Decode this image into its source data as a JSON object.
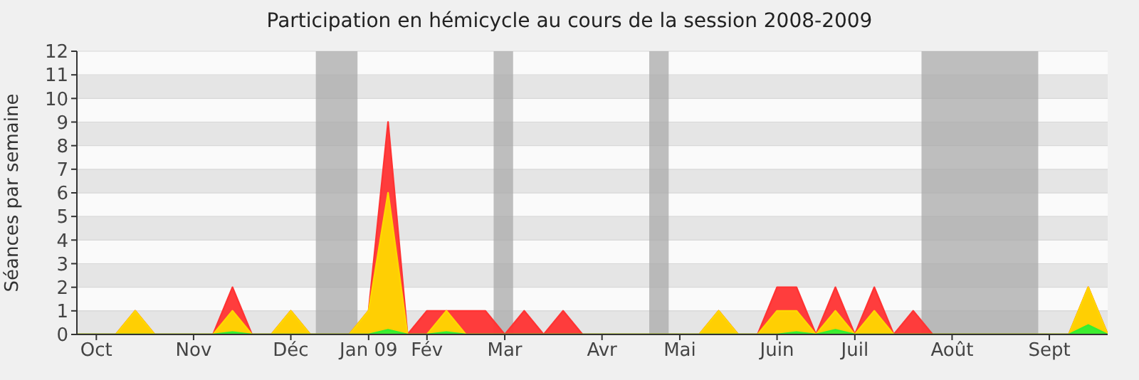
{
  "chart_data": {
    "type": "area",
    "title": "Participation en hémicycle au cours de la session 2008-2009",
    "ylabel": "Séances par semaine",
    "x": [
      "2008-09-29",
      "2008-10-06",
      "2008-10-13",
      "2008-10-20",
      "2008-10-27",
      "2008-11-03",
      "2008-11-10",
      "2008-11-17",
      "2008-11-24",
      "2008-12-01",
      "2008-12-08",
      "2008-12-15",
      "2008-12-22",
      "2008-12-29",
      "2009-01-05",
      "2009-01-12",
      "2009-01-19",
      "2009-01-26",
      "2009-02-02",
      "2009-02-09",
      "2009-02-16",
      "2009-02-23",
      "2009-03-02",
      "2009-03-09",
      "2009-03-16",
      "2009-03-23",
      "2009-03-30",
      "2009-04-06",
      "2009-04-13",
      "2009-04-20",
      "2009-04-27",
      "2009-05-04",
      "2009-05-11",
      "2009-05-18",
      "2009-05-25",
      "2009-06-01",
      "2009-06-08",
      "2009-06-15",
      "2009-06-22",
      "2009-06-29",
      "2009-07-06",
      "2009-07-13",
      "2009-07-20",
      "2009-07-27",
      "2009-08-03",
      "2009-08-10",
      "2009-08-17",
      "2009-08-24",
      "2009-08-31",
      "2009-09-07",
      "2009-09-14",
      "2009-09-21",
      "2009-09-28",
      "2009-10-05"
    ],
    "series": [
      {
        "color": "#ff3333",
        "values": [
          0,
          0,
          0,
          1,
          0,
          0,
          0,
          0,
          2,
          0,
          0,
          1,
          0,
          0,
          0,
          1,
          9,
          0,
          1,
          1,
          1,
          1,
          0,
          1,
          0,
          1,
          0,
          0,
          0,
          0,
          0,
          0,
          0,
          1,
          0,
          0,
          2,
          2,
          0,
          2,
          0,
          2,
          0,
          1,
          0,
          0,
          0,
          0,
          0,
          0,
          0,
          0,
          2,
          0
        ]
      },
      {
        "color": "#ffd700",
        "values": [
          0,
          0,
          0,
          1,
          0,
          0,
          0,
          0,
          1,
          0,
          0,
          1,
          0,
          0,
          0,
          1,
          6,
          0,
          0,
          1,
          0,
          0,
          0,
          0,
          0,
          0,
          0,
          0,
          0,
          0,
          0,
          0,
          0,
          1,
          0,
          0,
          1,
          1,
          0,
          1,
          0,
          1,
          0,
          0,
          0,
          0,
          0,
          0,
          0,
          0,
          0,
          0,
          2,
          0
        ]
      },
      {
        "color": "#33ee33",
        "values": [
          0,
          0,
          0,
          0,
          0,
          0,
          0,
          0,
          0.1,
          0,
          0,
          0,
          0,
          0,
          0,
          0,
          0.2,
          0,
          0,
          0.1,
          0,
          0,
          0,
          0,
          0,
          0,
          0,
          0,
          0,
          0,
          0,
          0,
          0,
          0,
          0,
          0,
          0,
          0.1,
          0,
          0.2,
          0,
          0,
          0,
          0,
          0,
          0,
          0,
          0,
          0,
          0,
          0,
          0,
          0.4,
          0
        ]
      }
    ],
    "xlim": [
      "2008-09-29",
      "2009-10-05"
    ],
    "xticks": [
      {
        "value": "2008-10-06",
        "label": "Oct"
      },
      {
        "value": "2008-11-10",
        "label": "Nov"
      },
      {
        "value": "2008-12-15",
        "label": "Déc"
      },
      {
        "value": "2009-01-12",
        "label": "Jan 09"
      },
      {
        "value": "2009-02-02",
        "label": "Fév"
      },
      {
        "value": "2009-03-02",
        "label": "Mar"
      },
      {
        "value": "2009-04-06",
        "label": "Avr"
      },
      {
        "value": "2009-05-04",
        "label": "Mai"
      },
      {
        "value": "2009-06-08",
        "label": "Juin"
      },
      {
        "value": "2009-07-06",
        "label": "Juil"
      },
      {
        "value": "2009-08-10",
        "label": "Août"
      },
      {
        "value": "2009-09-14",
        "label": "Sept"
      }
    ],
    "ylim": [
      0,
      12
    ],
    "yticks": [
      0,
      1,
      2,
      3,
      4,
      5,
      6,
      7,
      8,
      9,
      10,
      11,
      12
    ],
    "bands": [
      {
        "axis": "x",
        "from": "2008-12-24",
        "to": "2009-01-08",
        "color": "#aaaaaa"
      },
      {
        "axis": "x",
        "from": "2009-02-26",
        "to": "2009-03-05",
        "color": "#aaaaaa"
      },
      {
        "axis": "x",
        "from": "2009-04-23",
        "to": "2009-04-30",
        "color": "#aaaaaa"
      },
      {
        "axis": "x",
        "from": "2009-07-30",
        "to": "2009-09-10",
        "color": "#aaaaaa"
      }
    ],
    "grid": "y"
  }
}
